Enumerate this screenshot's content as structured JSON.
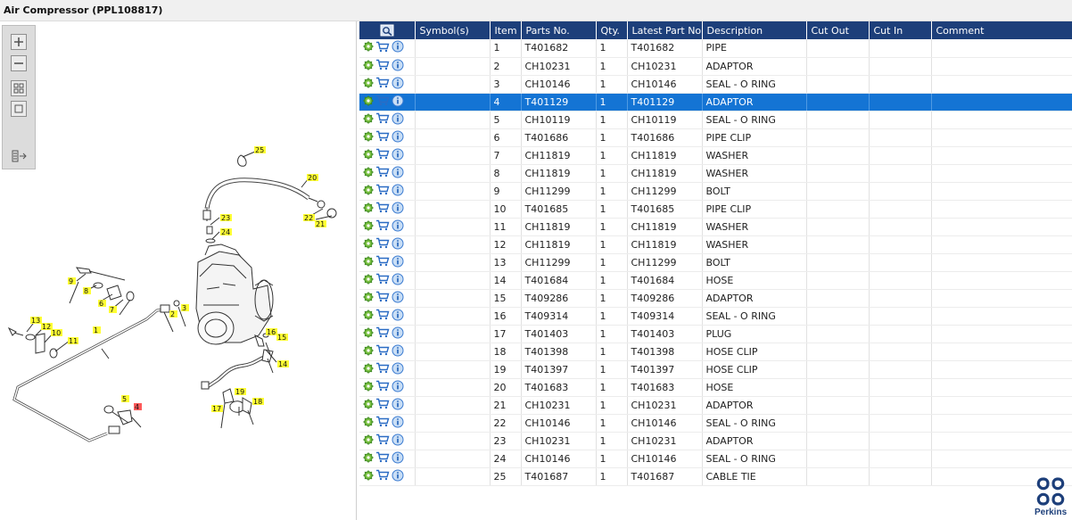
{
  "window": {
    "title": "Air Compressor (PPL108817)"
  },
  "toolbox": {
    "tools": [
      "zoom-in-icon",
      "zoom-out-icon",
      "fit-all-icon",
      "fit-window-icon",
      "export-icon"
    ]
  },
  "diagram": {
    "callouts": [
      {
        "label": "1"
      },
      {
        "label": "2"
      },
      {
        "label": "3"
      },
      {
        "label": "4"
      },
      {
        "label": "5"
      },
      {
        "label": "6"
      },
      {
        "label": "7"
      },
      {
        "label": "8"
      },
      {
        "label": "9"
      },
      {
        "label": "10"
      },
      {
        "label": "11"
      },
      {
        "label": "12"
      },
      {
        "label": "13"
      },
      {
        "label": "14"
      },
      {
        "label": "15"
      },
      {
        "label": "16"
      },
      {
        "label": "17"
      },
      {
        "label": "18"
      },
      {
        "label": "19"
      },
      {
        "label": "20"
      },
      {
        "label": "21"
      },
      {
        "label": "22"
      },
      {
        "label": "23"
      },
      {
        "label": "24"
      },
      {
        "label": "25"
      }
    ],
    "highlighted_callout": "4",
    "callout_color": "#ffff33",
    "highlight_color": "#ff5a5a"
  },
  "grid": {
    "columns": [
      "",
      "Symbol(s)",
      "Item",
      "Parts No.",
      "Qty.",
      "Latest Part No.",
      "Description",
      "Cut Out",
      "Cut In",
      "Comment"
    ],
    "header_color": "#1d3f7a",
    "selected_color": "#1474d4",
    "selected_item": "4",
    "row_icons": [
      "gear-icon",
      "cart-icon",
      "info-icon"
    ],
    "rows": [
      {
        "item": "1",
        "part_no": "T401682",
        "qty": "1",
        "latest": "T401682",
        "desc": "PIPE"
      },
      {
        "item": "2",
        "part_no": "CH10231",
        "qty": "1",
        "latest": "CH10231",
        "desc": "ADAPTOR"
      },
      {
        "item": "3",
        "part_no": "CH10146",
        "qty": "1",
        "latest": "CH10146",
        "desc": "SEAL - O RING"
      },
      {
        "item": "4",
        "part_no": "T401129",
        "qty": "1",
        "latest": "T401129",
        "desc": "ADAPTOR"
      },
      {
        "item": "5",
        "part_no": "CH10119",
        "qty": "1",
        "latest": "CH10119",
        "desc": "SEAL - O RING"
      },
      {
        "item": "6",
        "part_no": "T401686",
        "qty": "1",
        "latest": "T401686",
        "desc": "PIPE CLIP"
      },
      {
        "item": "7",
        "part_no": "CH11819",
        "qty": "1",
        "latest": "CH11819",
        "desc": "WASHER"
      },
      {
        "item": "8",
        "part_no": "CH11819",
        "qty": "1",
        "latest": "CH11819",
        "desc": "WASHER"
      },
      {
        "item": "9",
        "part_no": "CH11299",
        "qty": "1",
        "latest": "CH11299",
        "desc": "BOLT"
      },
      {
        "item": "10",
        "part_no": "T401685",
        "qty": "1",
        "latest": "T401685",
        "desc": "PIPE CLIP"
      },
      {
        "item": "11",
        "part_no": "CH11819",
        "qty": "1",
        "latest": "CH11819",
        "desc": "WASHER"
      },
      {
        "item": "12",
        "part_no": "CH11819",
        "qty": "1",
        "latest": "CH11819",
        "desc": "WASHER"
      },
      {
        "item": "13",
        "part_no": "CH11299",
        "qty": "1",
        "latest": "CH11299",
        "desc": "BOLT"
      },
      {
        "item": "14",
        "part_no": "T401684",
        "qty": "1",
        "latest": "T401684",
        "desc": "HOSE"
      },
      {
        "item": "15",
        "part_no": "T409286",
        "qty": "1",
        "latest": "T409286",
        "desc": "ADAPTOR"
      },
      {
        "item": "16",
        "part_no": "T409314",
        "qty": "1",
        "latest": "T409314",
        "desc": "SEAL - O RING"
      },
      {
        "item": "17",
        "part_no": "T401403",
        "qty": "1",
        "latest": "T401403",
        "desc": "PLUG"
      },
      {
        "item": "18",
        "part_no": "T401398",
        "qty": "1",
        "latest": "T401398",
        "desc": "HOSE CLIP"
      },
      {
        "item": "19",
        "part_no": "T401397",
        "qty": "1",
        "latest": "T401397",
        "desc": "HOSE CLIP"
      },
      {
        "item": "20",
        "part_no": "T401683",
        "qty": "1",
        "latest": "T401683",
        "desc": "HOSE"
      },
      {
        "item": "21",
        "part_no": "CH10231",
        "qty": "1",
        "latest": "CH10231",
        "desc": "ADAPTOR"
      },
      {
        "item": "22",
        "part_no": "CH10146",
        "qty": "1",
        "latest": "CH10146",
        "desc": "SEAL - O RING"
      },
      {
        "item": "23",
        "part_no": "CH10231",
        "qty": "1",
        "latest": "CH10231",
        "desc": "ADAPTOR"
      },
      {
        "item": "24",
        "part_no": "CH10146",
        "qty": "1",
        "latest": "CH10146",
        "desc": "SEAL - O RING"
      },
      {
        "item": "25",
        "part_no": "T401687",
        "qty": "1",
        "latest": "T401687",
        "desc": "CABLE TIE"
      }
    ]
  },
  "brand": {
    "name": "Perkins",
    "color": "#1d3f7a"
  }
}
